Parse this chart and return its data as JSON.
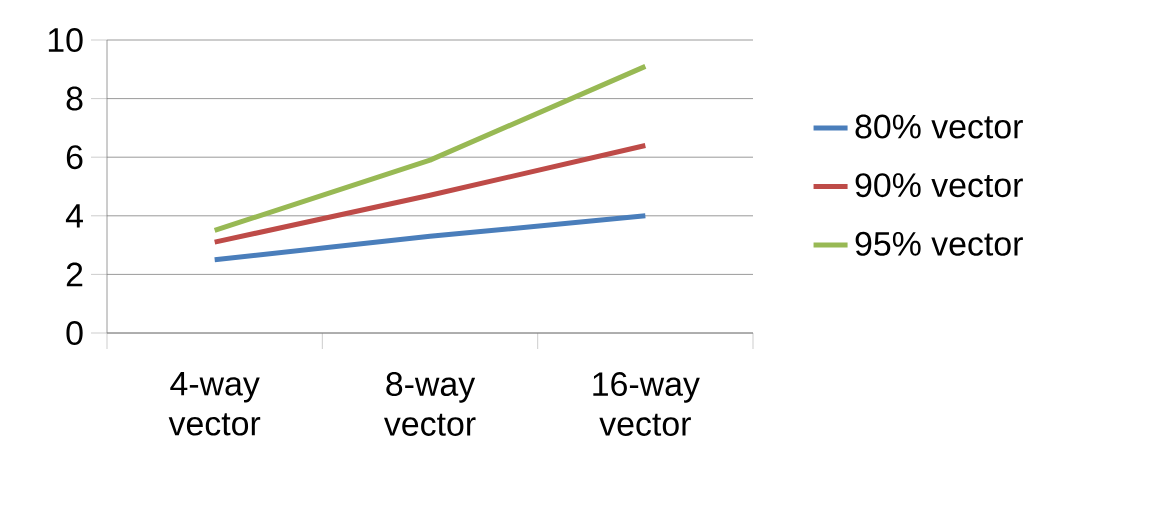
{
  "chart_data": {
    "type": "line",
    "categories": [
      "4-way vector",
      "8-way vector",
      "16-way vector"
    ],
    "series": [
      {
        "name": "80% vector",
        "color": "#4a7ebb",
        "values": [
          2.5,
          3.3,
          4.0
        ]
      },
      {
        "name": "90% vector",
        "color": "#be4b48",
        "values": [
          3.1,
          4.7,
          6.4
        ]
      },
      {
        "name": "95% vector",
        "color": "#98b954",
        "values": [
          3.5,
          5.9,
          9.1
        ]
      }
    ],
    "ylim": [
      0,
      10
    ],
    "yticks": [
      0,
      2,
      4,
      6,
      8,
      10
    ],
    "grid": "y",
    "legend": "right",
    "marker": "none",
    "line_style": "solid"
  }
}
